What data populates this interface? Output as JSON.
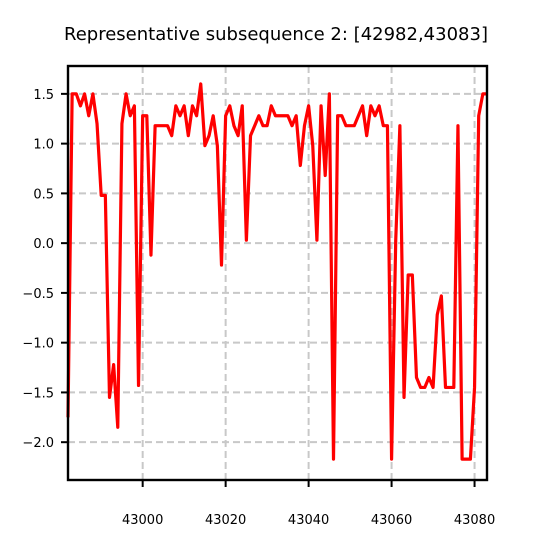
{
  "chart_data": {
    "type": "line",
    "title": "Representative subsequence 2: [42982,43083]",
    "xlabel": "",
    "ylabel": "",
    "xlim": [
      42982,
      43083
    ],
    "ylim": [
      -2.38,
      1.78
    ],
    "xticks": [
      43000,
      43020,
      43040,
      43060,
      43080
    ],
    "xtick_labels": [
      "43000",
      "43020",
      "43040",
      "43060",
      "43080"
    ],
    "yticks": [
      1.5,
      1.0,
      0.5,
      0.0,
      -0.5,
      -1.0,
      -1.5,
      -2.0
    ],
    "ytick_labels": [
      "1.5",
      "1.0",
      "0.5",
      "0.0",
      "−0.5",
      "−1.0",
      "−1.5",
      "−2.0"
    ],
    "grid": true,
    "legend": "none",
    "colors": {
      "line": "#ff0000",
      "grid": "#c8c8c8",
      "axis": "#000000"
    },
    "series": [
      {
        "x": [
          42982,
          42983,
          42984,
          42985,
          42986,
          42987,
          42988,
          42989,
          42990,
          42991,
          42992,
          42993,
          42994,
          42995,
          42996,
          42997,
          42998,
          42999,
          43000,
          43001,
          43002,
          43003,
          43004,
          43005,
          43006,
          43007,
          43008,
          43009,
          43010,
          43011,
          43012,
          43013,
          43014,
          43015,
          43016,
          43017,
          43018,
          43019,
          43020,
          43021,
          43022,
          43023,
          43024,
          43025,
          43026,
          43027,
          43028,
          43029,
          43030,
          43031,
          43032,
          43033,
          43034,
          43035,
          43036,
          43037,
          43038,
          43039,
          43040,
          43041,
          43042,
          43043,
          43044,
          43045,
          43046,
          43047,
          43048,
          43049,
          43050,
          43051,
          43052,
          43053,
          43054,
          43055,
          43056,
          43057,
          43058,
          43059,
          43060,
          43061,
          43062,
          43063,
          43064,
          43065,
          43066,
          43067,
          43068,
          43069,
          43070,
          43071,
          43072,
          43073,
          43074,
          43075,
          43076,
          43077,
          43078,
          43079,
          43080,
          43081,
          43082,
          43083
        ],
        "y": [
          -1.75,
          1.5,
          1.5,
          1.38,
          1.5,
          1.28,
          1.5,
          1.2,
          0.48,
          0.48,
          -1.55,
          -1.22,
          -1.85,
          1.2,
          1.5,
          1.28,
          1.38,
          -1.43,
          1.28,
          1.28,
          -0.12,
          1.18,
          1.18,
          1.18,
          1.18,
          1.08,
          1.38,
          1.28,
          1.38,
          1.08,
          1.38,
          1.28,
          1.6,
          0.98,
          1.08,
          1.28,
          0.98,
          -0.22,
          1.28,
          1.38,
          1.18,
          1.08,
          1.38,
          0.03,
          1.08,
          1.18,
          1.28,
          1.18,
          1.18,
          1.38,
          1.28,
          1.28,
          1.28,
          1.28,
          1.18,
          1.28,
          0.78,
          1.18,
          1.38,
          0.98,
          0.03,
          1.38,
          0.68,
          1.5,
          -2.17,
          1.28,
          1.28,
          1.18,
          1.18,
          1.18,
          1.28,
          1.38,
          1.08,
          1.38,
          1.28,
          1.38,
          1.18,
          1.18,
          -2.17,
          0.03,
          1.18,
          -1.55,
          -0.32,
          -0.32,
          -1.35,
          -1.45,
          -1.45,
          -1.35,
          -1.45,
          -0.72,
          -0.53,
          -1.45,
          -1.45,
          -1.45,
          1.18,
          -2.17,
          -2.17,
          -2.17,
          -1.45,
          1.28,
          1.5,
          1.5
        ]
      }
    ]
  }
}
